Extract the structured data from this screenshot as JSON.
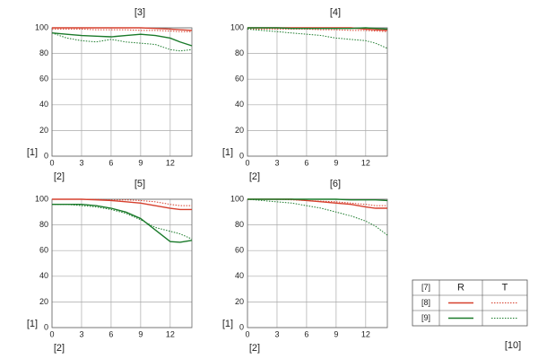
{
  "chart_data": [
    {
      "type": "line",
      "title": "[3]",
      "xlabel": "[2]",
      "ylabel": "[1]",
      "x": [
        0,
        1.5,
        3,
        4.5,
        6,
        7.5,
        9,
        10.5,
        12,
        13,
        14.2
      ],
      "xlim": [
        0,
        14.2
      ],
      "ylim": [
        0,
        100
      ],
      "xticks": [
        0,
        3,
        6,
        9,
        12
      ],
      "yticks": [
        0,
        20,
        40,
        60,
        80,
        100
      ],
      "grid": true,
      "series": [
        {
          "color": "#d6402e",
          "style": "solid",
          "values": [
            100,
            100,
            100,
            100,
            100,
            100,
            100,
            99.5,
            99,
            98.5,
            98
          ]
        },
        {
          "color": "#d6402e",
          "style": "dotted",
          "values": [
            99,
            99,
            99,
            98.5,
            98.5,
            98.5,
            98,
            98,
            97.5,
            97,
            97
          ]
        },
        {
          "color": "#1a7a2a",
          "style": "solid",
          "values": [
            96,
            95,
            94,
            93.5,
            93,
            94,
            95,
            94,
            92,
            89,
            86
          ]
        },
        {
          "color": "#1a7a2a",
          "style": "dotted",
          "values": [
            96,
            92,
            90,
            89,
            91,
            89,
            88,
            87,
            83,
            82,
            83
          ]
        }
      ]
    },
    {
      "type": "line",
      "title": "[4]",
      "xlabel": "[2]",
      "ylabel": "[1]",
      "x": [
        0,
        1.5,
        3,
        4.5,
        6,
        7.5,
        9,
        10.5,
        12,
        13,
        14.2
      ],
      "xlim": [
        0,
        14.2
      ],
      "ylim": [
        0,
        100
      ],
      "xticks": [
        0,
        3,
        6,
        9,
        12
      ],
      "yticks": [
        0,
        20,
        40,
        60,
        80,
        100
      ],
      "grid": true,
      "series": [
        {
          "color": "#d6402e",
          "style": "solid",
          "values": [
            100,
            100,
            100,
            100,
            100,
            100,
            100,
            100,
            99,
            98.5,
            98
          ]
        },
        {
          "color": "#d6402e",
          "style": "dotted",
          "values": [
            99,
            99,
            99,
            99,
            99,
            98.5,
            98.5,
            98,
            98,
            97.5,
            97
          ]
        },
        {
          "color": "#1a7a2a",
          "style": "solid",
          "values": [
            100,
            100,
            100,
            99.5,
            99.5,
            99.5,
            99.5,
            99.5,
            100,
            99.5,
            99
          ]
        },
        {
          "color": "#1a7a2a",
          "style": "dotted",
          "values": [
            99,
            98,
            97,
            96,
            95,
            94,
            92,
            91,
            90,
            88,
            84
          ]
        }
      ]
    },
    {
      "type": "line",
      "title": "[5]",
      "xlabel": "[2]",
      "ylabel": "[1]",
      "x": [
        0,
        1.5,
        3,
        4.5,
        6,
        7.5,
        9,
        10.5,
        12,
        13,
        14.2
      ],
      "xlim": [
        0,
        14.2
      ],
      "ylim": [
        0,
        100
      ],
      "xticks": [
        0,
        3,
        6,
        9,
        12
      ],
      "yticks": [
        0,
        20,
        40,
        60,
        80,
        100
      ],
      "grid": true,
      "series": [
        {
          "color": "#d6402e",
          "style": "solid",
          "values": [
            100,
            100,
            100,
            99.5,
            99,
            98,
            97,
            95,
            93,
            92,
            92
          ]
        },
        {
          "color": "#d6402e",
          "style": "dotted",
          "values": [
            100,
            100,
            100,
            100,
            99.5,
            99.5,
            99,
            98,
            96,
            95,
            95
          ]
        },
        {
          "color": "#1a7a2a",
          "style": "solid",
          "values": [
            96,
            96,
            96,
            95,
            93,
            90,
            85,
            76,
            67,
            66.5,
            68
          ]
        },
        {
          "color": "#1a7a2a",
          "style": "dotted",
          "values": [
            96,
            96,
            95,
            94,
            92,
            89,
            84,
            78,
            75,
            73,
            69
          ]
        }
      ]
    },
    {
      "type": "line",
      "title": "[6]",
      "xlabel": "[2]",
      "ylabel": "[1]",
      "x": [
        0,
        1.5,
        3,
        4.5,
        6,
        7.5,
        9,
        10.5,
        12,
        13,
        14.2
      ],
      "xlim": [
        0,
        14.2
      ],
      "ylim": [
        0,
        100
      ],
      "xticks": [
        0,
        3,
        6,
        9,
        12
      ],
      "yticks": [
        0,
        20,
        40,
        60,
        80,
        100
      ],
      "grid": true,
      "series": [
        {
          "color": "#d6402e",
          "style": "solid",
          "values": [
            100,
            100,
            100,
            100,
            99,
            98,
            97,
            96,
            94,
            93,
            93
          ]
        },
        {
          "color": "#d6402e",
          "style": "dotted",
          "values": [
            100,
            100,
            100,
            99.5,
            99,
            98.5,
            98,
            97,
            96,
            95,
            95
          ]
        },
        {
          "color": "#1a7a2a",
          "style": "solid",
          "values": [
            100,
            100,
            100,
            100,
            100,
            100,
            100,
            99.5,
            99.5,
            99.5,
            99
          ]
        },
        {
          "color": "#1a7a2a",
          "style": "dotted",
          "values": [
            100,
            99,
            98,
            97,
            95,
            93,
            90,
            87,
            83,
            79,
            72
          ]
        }
      ]
    }
  ],
  "legend": {
    "corner": "[7]",
    "columns": [
      "R",
      "T"
    ],
    "rows": [
      "[8]",
      "[9]"
    ],
    "row_colors": [
      "#d6402e",
      "#1a7a2a"
    ],
    "column_styles": [
      "solid",
      "dotted"
    ]
  },
  "footer": "[10]"
}
